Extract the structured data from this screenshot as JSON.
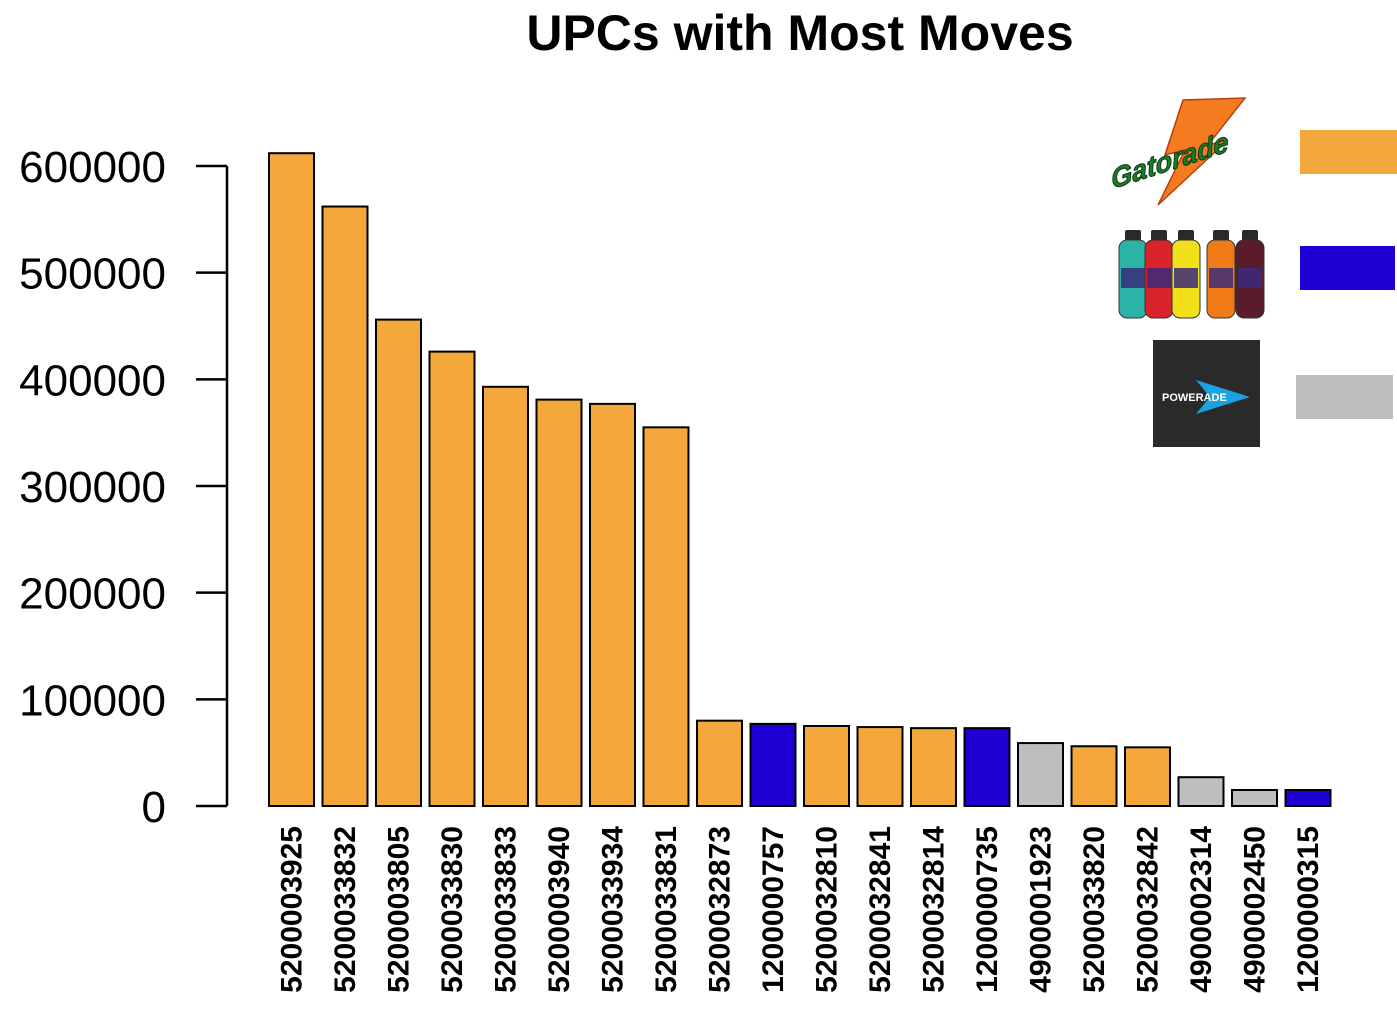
{
  "chart_data": {
    "type": "bar",
    "title": "UPCs with Most Moves",
    "xlabel": "",
    "ylabel": "",
    "ylim": [
      0,
      600000
    ],
    "yticks": [
      0,
      100000,
      200000,
      300000,
      400000,
      500000,
      600000
    ],
    "ytick_labels": [
      "0",
      "100000",
      "200000",
      "300000",
      "400000",
      "500000",
      "600000"
    ],
    "categories": [
      "5200003925",
      "5200033832",
      "5200003805",
      "5200033830",
      "5200033833",
      "5200003940",
      "5200033934",
      "5200033831",
      "5200032873",
      "1200000757",
      "5200032810",
      "5200032841",
      "5200032814",
      "1200000735",
      "4900001923",
      "5200033820",
      "5200032842",
      "4900002314",
      "4900002450",
      "1200000315"
    ],
    "values": [
      612000,
      562000,
      456000,
      426000,
      393000,
      381000,
      377000,
      355000,
      80000,
      77000,
      75000,
      74000,
      73000,
      73000,
      59000,
      56000,
      55000,
      27000,
      15000,
      15000
    ],
    "bar_brands": [
      "gatorade",
      "gatorade",
      "gatorade",
      "gatorade",
      "gatorade",
      "gatorade",
      "gatorade",
      "gatorade",
      "gatorade",
      "allsport",
      "gatorade",
      "gatorade",
      "gatorade",
      "allsport",
      "powerade",
      "gatorade",
      "gatorade",
      "powerade",
      "powerade",
      "allsport"
    ],
    "colors": {
      "gatorade": "#F4A83C",
      "allsport": "#1C00D4",
      "powerade": "#BEBEBE",
      "outline": "#000000"
    },
    "grid": false,
    "legend": {
      "placement": "top-right",
      "entries": [
        {
          "brand": "gatorade",
          "logo_text": "Gatorade",
          "logo_icon": "gatorade-logo"
        },
        {
          "brand": "allsport",
          "logo_text": "ALL SPORT",
          "logo_icon": "allsport-bottles-image"
        },
        {
          "brand": "powerade",
          "logo_text": "POWERADE",
          "logo_icon": "powerade-logo"
        }
      ]
    }
  }
}
